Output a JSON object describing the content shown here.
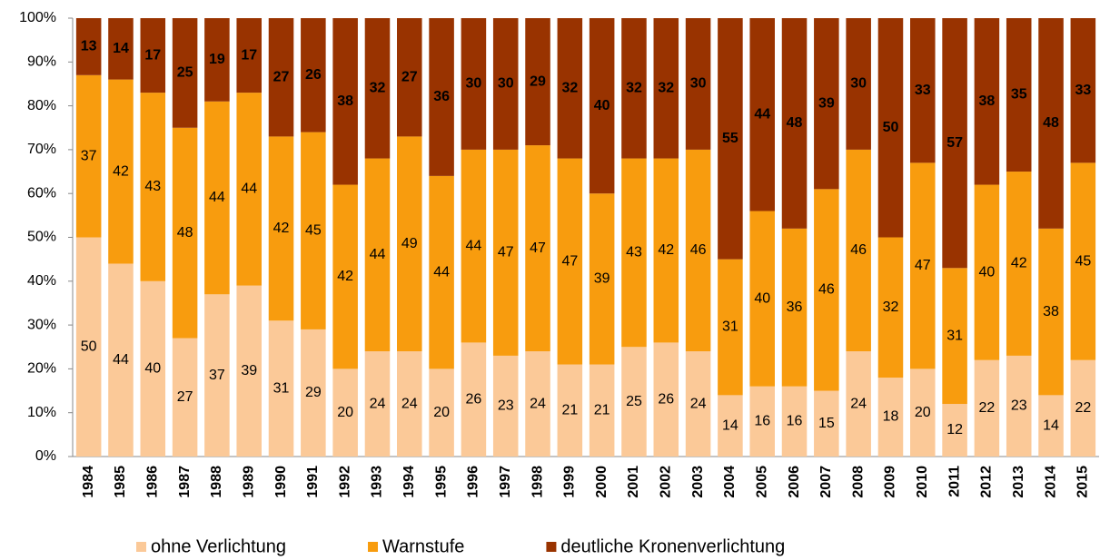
{
  "chart_data": {
    "type": "bar",
    "stacked": true,
    "categories": [
      "1984",
      "1985",
      "1986",
      "1987",
      "1988",
      "1989",
      "1990",
      "1991",
      "1992",
      "1993",
      "1994",
      "1995",
      "1996",
      "1997",
      "1998",
      "1999",
      "2000",
      "2001",
      "2002",
      "2003",
      "2004",
      "2005",
      "2006",
      "2007",
      "2008",
      "2009",
      "2010",
      "2011",
      "2012",
      "2013",
      "2014",
      "2015"
    ],
    "series": [
      {
        "name": "ohne Verlichtung",
        "color": "#fbc998",
        "values": [
          50,
          44,
          40,
          27,
          37,
          39,
          31,
          29,
          20,
          24,
          24,
          20,
          26,
          23,
          24,
          21,
          21,
          25,
          26,
          24,
          14,
          16,
          16,
          15,
          24,
          18,
          20,
          12,
          22,
          23,
          14,
          22
        ]
      },
      {
        "name": "Warnstufe",
        "color": "#f89c0e",
        "values": [
          37,
          42,
          43,
          48,
          44,
          44,
          42,
          45,
          42,
          44,
          49,
          44,
          44,
          47,
          47,
          47,
          39,
          43,
          42,
          46,
          31,
          40,
          36,
          46,
          46,
          32,
          47,
          31,
          40,
          42,
          38,
          45
        ]
      },
      {
        "name": "deutliche Kronenverlichtung",
        "color": "#993300",
        "values": [
          13,
          14,
          17,
          25,
          19,
          17,
          27,
          26,
          38,
          32,
          27,
          36,
          30,
          30,
          29,
          32,
          40,
          32,
          32,
          30,
          55,
          44,
          48,
          39,
          30,
          50,
          33,
          57,
          38,
          35,
          48,
          33
        ]
      }
    ],
    "ylim": [
      0,
      100
    ],
    "yticks": [
      {
        "value": 0,
        "label": "0%"
      },
      {
        "value": 10,
        "label": "10%"
      },
      {
        "value": 20,
        "label": "20%"
      },
      {
        "value": 30,
        "label": "30%"
      },
      {
        "value": 40,
        "label": "40%"
      },
      {
        "value": 50,
        "label": "50%"
      },
      {
        "value": 60,
        "label": "60%"
      },
      {
        "value": 70,
        "label": "70%"
      },
      {
        "value": 80,
        "label": "80%"
      },
      {
        "value": 90,
        "label": "90%"
      },
      {
        "value": 100,
        "label": "100%"
      }
    ],
    "legend": "bottom"
  }
}
